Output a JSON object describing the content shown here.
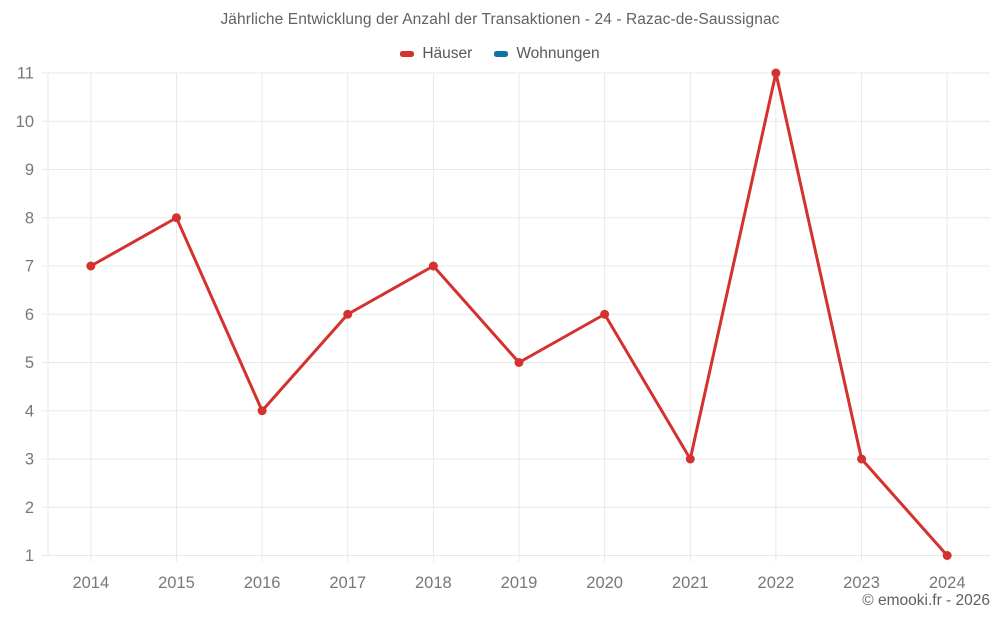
{
  "header": {
    "title": "Jährliche Entwicklung der Anzahl der Transaktionen - 24 - Razac-de-Saussignac"
  },
  "legend": [
    {
      "label": "Häuser",
      "color": "#d4312f"
    },
    {
      "label": "Wohnungen",
      "color": "#0f73a8"
    }
  ],
  "footer": {
    "copyright": "© emooki.fr - 2026"
  },
  "colors": {
    "background": "#ffffff",
    "gridline": "#e8e8e9",
    "tick_text": "#77777c",
    "title_text": "#5f6266",
    "legend_text": "#56595e",
    "copyright_text": "#5d6065",
    "haeuser_red": "#d4312f",
    "wohnungen_blue": "#0f73a8"
  },
  "chart_data": {
    "type": "line",
    "title": "Jährliche Entwicklung der Anzahl der Transaktionen - 24 - Razac-de-Saussignac",
    "categories": [
      "2014",
      "2015",
      "2016",
      "2017",
      "2018",
      "2019",
      "2020",
      "2021",
      "2022",
      "2023",
      "2024"
    ],
    "series": [
      {
        "name": "Häuser",
        "color": "#d4312f",
        "values": [
          7,
          8,
          4,
          6,
          7,
          5,
          6,
          3,
          11,
          3,
          1
        ]
      },
      {
        "name": "Wohnungen",
        "color": "#0f73a8",
        "values": []
      }
    ],
    "xlabel": "",
    "ylabel": "",
    "ylim": [
      1,
      11
    ],
    "yticks": [
      1,
      2,
      3,
      4,
      5,
      6,
      7,
      8,
      9,
      10,
      11
    ],
    "grid": true,
    "legend_position": "top",
    "point_radius": 4.5,
    "line_width": 3
  }
}
